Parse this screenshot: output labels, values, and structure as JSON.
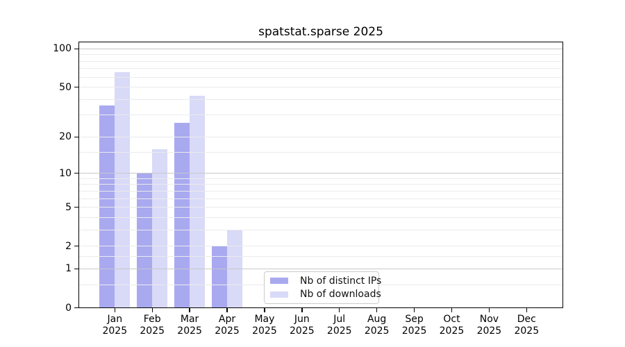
{
  "title": "spatstat.sparse 2025",
  "chart_data": {
    "type": "bar",
    "title": "spatstat.sparse 2025",
    "x_categories": [
      "Jan",
      "Feb",
      "Mar",
      "Apr",
      "May",
      "Jun",
      "Jul",
      "Aug",
      "Sep",
      "Oct",
      "Nov",
      "Dec"
    ],
    "x_year_label": "2025",
    "series": [
      {
        "name": "Nb of distinct IPs",
        "color": "#a9a9f0",
        "values": [
          36,
          10,
          26,
          2,
          0,
          0,
          0,
          0,
          0,
          0,
          0,
          0
        ]
      },
      {
        "name": "Nb of downloads",
        "color": "#d9d9f8",
        "values": [
          66,
          16,
          43,
          3,
          0,
          0,
          0,
          0,
          0,
          0,
          0,
          0
        ]
      }
    ],
    "y_scale": "log1p",
    "ylim": [
      0,
      114
    ],
    "y_ticks": [
      {
        "label": "0",
        "value": 0
      },
      {
        "label": "1",
        "value": 1
      },
      {
        "label": "2",
        "value": 2
      },
      {
        "label": "5",
        "value": 5
      },
      {
        "label": "10",
        "value": 10
      },
      {
        "label": "20",
        "value": 20
      },
      {
        "label": "50",
        "value": 50
      },
      {
        "label": "100",
        "value": 100
      }
    ],
    "grid_major_values": [
      1,
      10,
      100
    ],
    "grid_minor_values": [
      0.5,
      1.5,
      2,
      3,
      4,
      5,
      6,
      7,
      8,
      9,
      15,
      20,
      30,
      40,
      50,
      60,
      70,
      80,
      90
    ],
    "grid_major_color": "#c8c8c8",
    "grid_minor_color": "#ebebeb",
    "legend_position": "lower center",
    "grid_on": true
  }
}
